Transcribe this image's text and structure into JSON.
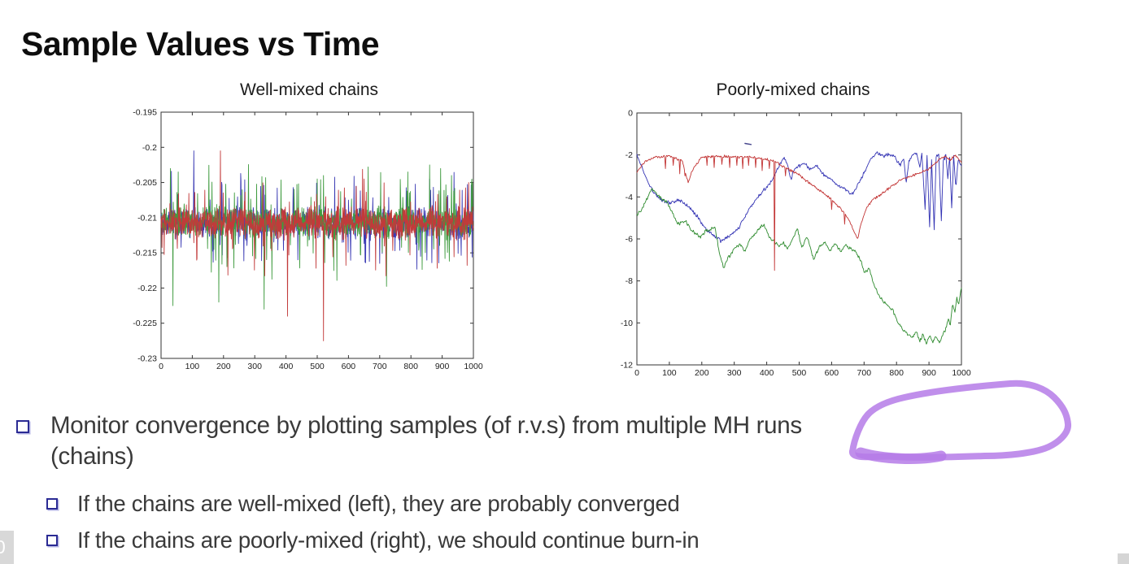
{
  "slide": {
    "title": "Sample Values vs Time",
    "page_badge": "0"
  },
  "bullets": {
    "b1_line1": "Monitor convergence by plotting samples (of r.v.s) from multiple MH runs",
    "b1_line2": "(chains)",
    "s1": "If the chains are well-mixed (left), they are probably converged",
    "s2": "If the chains are poorly-mixed (right), we should continue burn-in"
  },
  "annotation": {
    "label": "hand-drawn loop circling the words 'multiple MH runs'",
    "color": "#b57be8"
  },
  "chart_data": [
    {
      "type": "line",
      "title": "Well-mixed chains",
      "xlabel": "",
      "ylabel": "",
      "xlim": [
        0,
        1000
      ],
      "ylim": [
        -0.23,
        -0.195
      ],
      "grid": false,
      "legend": "none",
      "xticks": [
        0,
        100,
        200,
        300,
        400,
        500,
        600,
        700,
        800,
        900,
        1000
      ],
      "xtick_labels": [
        "0",
        "100",
        "200",
        "300",
        "400",
        "500",
        "600",
        "700",
        "800",
        "900",
        "1000"
      ],
      "yticks": [
        -0.195,
        -0.2,
        -0.205,
        -0.21,
        -0.215,
        -0.22,
        -0.225,
        -0.23
      ],
      "ytick_labels": [
        "-0.195",
        "-0.2",
        "-0.205",
        "-0.21",
        "-0.215",
        "-0.22",
        "-0.225",
        "-0.23"
      ],
      "description": "Three MH chains oscillating tightly around mean -0.2105 with dense noise band -0.208..-0.213 and occasional spikes to -0.2 and -0.2275",
      "series": [
        {
          "name": "chain 1 (blue)",
          "color": "#3b3bb4",
          "gen": "noise",
          "mean": -0.2108,
          "amp": 0.0025,
          "spike_prob": 0.12,
          "spike_amp": 0.006,
          "seed": 11,
          "spikes": [
            [
              105,
              -0.2005
            ],
            [
              330,
              -0.2165
            ],
            [
              600,
              -0.2075
            ],
            [
              700,
              -0.2165
            ],
            [
              860,
              -0.2045
            ]
          ]
        },
        {
          "name": "chain 2 (green)",
          "color": "#3f9b3f",
          "gen": "noise",
          "mean": -0.2106,
          "amp": 0.0025,
          "spike_prob": 0.13,
          "spike_amp": 0.007,
          "seed": 22,
          "spikes": [
            [
              30,
              -0.203
            ],
            [
              38,
              -0.2225
            ],
            [
              55,
              -0.2035
            ],
            [
              185,
              -0.222
            ],
            [
              330,
              -0.223
            ],
            [
              520,
              -0.204
            ],
            [
              790,
              -0.2035
            ],
            [
              860,
              -0.2025
            ],
            [
              895,
              -0.203
            ],
            [
              930,
              -0.204
            ]
          ]
        },
        {
          "name": "chain 3 (red)",
          "color": "#c23a3a",
          "gen": "noise",
          "mean": -0.2108,
          "amp": 0.0025,
          "spike_prob": 0.12,
          "spike_amp": 0.006,
          "seed": 33,
          "spikes": [
            [
              190,
              -0.2005
            ],
            [
              405,
              -0.224
            ],
            [
              520,
              -0.2275
            ],
            [
              650,
              -0.2045
            ],
            [
              985,
              -0.205
            ]
          ]
        }
      ]
    },
    {
      "type": "line",
      "title": "Poorly-mixed chains",
      "xlabel": "",
      "ylabel": "",
      "xlim": [
        0,
        1000
      ],
      "ylim": [
        -12,
        0
      ],
      "grid": false,
      "legend": "none",
      "xticks": [
        0,
        100,
        200,
        300,
        400,
        500,
        600,
        700,
        800,
        900,
        1000
      ],
      "xtick_labels": [
        "0",
        "100",
        "200",
        "300",
        "400",
        "500",
        "600",
        "700",
        "800",
        "900",
        "1000"
      ],
      "yticks": [
        0,
        -2,
        -4,
        -6,
        -8,
        -10,
        -12
      ],
      "ytick_labels": [
        "0",
        "-2",
        "-4",
        "-6",
        "-8",
        "-10",
        "-12"
      ],
      "description": "Three MH chains wandering far apart: red near -2 then dipping to -6, blue between -2 and -6 with wild end oscillations, green drifting down to -11 before recovering to -8.3",
      "series": [
        {
          "name": "blue chain",
          "color": "#3434b4",
          "gen": "way",
          "noise": 0.1,
          "seed": 8,
          "way": [
            [
              0,
              -2.0
            ],
            [
              18,
              -2.7
            ],
            [
              40,
              -3.5
            ],
            [
              70,
              -4.1
            ],
            [
              100,
              -4.3
            ],
            [
              130,
              -4.15
            ],
            [
              160,
              -4.45
            ],
            [
              185,
              -4.9
            ],
            [
              210,
              -5.5
            ],
            [
              235,
              -5.8
            ],
            [
              258,
              -6.1
            ],
            [
              285,
              -5.9
            ],
            [
              310,
              -5.55
            ],
            [
              335,
              -4.9
            ],
            [
              355,
              -4.35
            ],
            [
              375,
              -3.95
            ],
            [
              395,
              -3.6
            ],
            [
              415,
              -3.25
            ],
            [
              432,
              -2.7
            ],
            [
              447,
              -2.25
            ],
            [
              455,
              -2.1
            ],
            [
              465,
              -2.5
            ],
            [
              475,
              -3.2
            ],
            [
              483,
              -2.7
            ],
            [
              495,
              -2.55
            ],
            [
              515,
              -2.4
            ],
            [
              535,
              -2.7
            ],
            [
              555,
              -2.5
            ],
            [
              575,
              -2.95
            ],
            [
              600,
              -3.2
            ],
            [
              622,
              -3.5
            ],
            [
              645,
              -3.65
            ],
            [
              662,
              -3.9
            ],
            [
              678,
              -3.5
            ],
            [
              700,
              -2.85
            ],
            [
              720,
              -2.2
            ],
            [
              740,
              -1.9
            ],
            [
              760,
              -2.05
            ],
            [
              778,
              -1.95
            ],
            [
              795,
              -2.1
            ],
            [
              810,
              -2.5
            ],
            [
              822,
              -2.2
            ],
            [
              830,
              -3.3
            ],
            [
              838,
              -2.3
            ],
            [
              850,
              -2.0
            ],
            [
              862,
              -1.9
            ],
            [
              872,
              -2.6
            ],
            [
              878,
              -1.95
            ],
            [
              888,
              -4.5
            ],
            [
              894,
              -2.1
            ],
            [
              902,
              -5.5
            ],
            [
              908,
              -2.2
            ],
            [
              916,
              -5.6
            ],
            [
              922,
              -2.1
            ],
            [
              930,
              -1.95
            ],
            [
              938,
              -5.2
            ],
            [
              944,
              -2.3
            ],
            [
              952,
              -2.0
            ],
            [
              958,
              -3.1
            ],
            [
              964,
              -2.1
            ],
            [
              970,
              -4.6
            ],
            [
              976,
              -2.05
            ],
            [
              983,
              -3.6
            ],
            [
              990,
              -2.2
            ],
            [
              1000,
              -2.55
            ]
          ]
        },
        {
          "name": "green chain",
          "color": "#2e8b2e",
          "gen": "way",
          "noise": 0.1,
          "seed": 9,
          "way": [
            [
              0,
              -4.9
            ],
            [
              20,
              -4.45
            ],
            [
              45,
              -3.6
            ],
            [
              70,
              -4.0
            ],
            [
              95,
              -4.3
            ],
            [
              125,
              -5.3
            ],
            [
              150,
              -5.15
            ],
            [
              170,
              -5.6
            ],
            [
              195,
              -5.9
            ],
            [
              215,
              -5.6
            ],
            [
              240,
              -5.45
            ],
            [
              255,
              -6.7
            ],
            [
              268,
              -7.4
            ],
            [
              282,
              -6.9
            ],
            [
              300,
              -6.45
            ],
            [
              318,
              -6.25
            ],
            [
              332,
              -6.6
            ],
            [
              348,
              -6.0
            ],
            [
              362,
              -5.85
            ],
            [
              378,
              -5.45
            ],
            [
              392,
              -5.3
            ],
            [
              408,
              -5.9
            ],
            [
              422,
              -6.1
            ],
            [
              438,
              -6.35
            ],
            [
              452,
              -6.2
            ],
            [
              466,
              -6.45
            ],
            [
              480,
              -6.0
            ],
            [
              494,
              -5.5
            ],
            [
              508,
              -6.4
            ],
            [
              524,
              -5.9
            ],
            [
              545,
              -7.0
            ],
            [
              562,
              -6.35
            ],
            [
              578,
              -6.2
            ],
            [
              596,
              -6.55
            ],
            [
              612,
              -6.2
            ],
            [
              628,
              -6.65
            ],
            [
              642,
              -6.3
            ],
            [
              658,
              -6.45
            ],
            [
              672,
              -6.55
            ],
            [
              690,
              -7.05
            ],
            [
              702,
              -7.6
            ],
            [
              716,
              -7.4
            ],
            [
              730,
              -8.2
            ],
            [
              745,
              -8.7
            ],
            [
              760,
              -9.0
            ],
            [
              775,
              -9.2
            ],
            [
              790,
              -9.45
            ],
            [
              805,
              -10.0
            ],
            [
              820,
              -10.3
            ],
            [
              835,
              -10.55
            ],
            [
              848,
              -10.7
            ],
            [
              860,
              -10.4
            ],
            [
              872,
              -10.85
            ],
            [
              882,
              -10.55
            ],
            [
              892,
              -11.0
            ],
            [
              902,
              -10.6
            ],
            [
              912,
              -10.9
            ],
            [
              922,
              -10.65
            ],
            [
              932,
              -10.95
            ],
            [
              942,
              -10.6
            ],
            [
              952,
              -10.3
            ],
            [
              960,
              -9.8
            ],
            [
              966,
              -10.1
            ],
            [
              972,
              -9.15
            ],
            [
              980,
              -9.45
            ],
            [
              986,
              -8.85
            ],
            [
              992,
              -9.1
            ],
            [
              1000,
              -8.3
            ]
          ]
        },
        {
          "name": "red chain",
          "color": "#c23434",
          "gen": "way",
          "noise": 0.07,
          "seed": 7,
          "way": [
            [
              0,
              -2.8
            ],
            [
              25,
              -2.3
            ],
            [
              60,
              -2.1
            ],
            [
              100,
              -2.05
            ],
            [
              140,
              -2.3
            ],
            [
              158,
              -3.3
            ],
            [
              172,
              -2.7
            ],
            [
              200,
              -2.1
            ],
            [
              250,
              -2.05
            ],
            [
              300,
              -2.1
            ],
            [
              350,
              -2.1
            ],
            [
              395,
              -2.2
            ],
            [
              424,
              -2.3
            ],
            [
              445,
              -2.5
            ],
            [
              470,
              -2.7
            ],
            [
              495,
              -2.9
            ],
            [
              520,
              -3.2
            ],
            [
              555,
              -3.6
            ],
            [
              590,
              -4.0
            ],
            [
              625,
              -4.5
            ],
            [
              650,
              -5.0
            ],
            [
              665,
              -5.5
            ],
            [
              680,
              -6.0
            ],
            [
              692,
              -5.2
            ],
            [
              705,
              -4.6
            ],
            [
              725,
              -4.15
            ],
            [
              750,
              -3.9
            ],
            [
              780,
              -3.55
            ],
            [
              815,
              -3.15
            ],
            [
              845,
              -3.0
            ],
            [
              875,
              -2.85
            ],
            [
              905,
              -2.6
            ],
            [
              930,
              -2.25
            ],
            [
              950,
              -2.05
            ],
            [
              965,
              -2.25
            ],
            [
              980,
              -2.0
            ],
            [
              1000,
              -2.35
            ]
          ],
          "dips": [
            [
              88,
              -2.65
            ],
            [
              112,
              -2.5
            ],
            [
              132,
              -2.9
            ],
            [
              148,
              -3.0
            ],
            [
              215,
              -2.5
            ],
            [
              238,
              -2.6
            ],
            [
              262,
              -2.45
            ],
            [
              285,
              -2.6
            ],
            [
              308,
              -2.5
            ],
            [
              326,
              -2.65
            ],
            [
              344,
              -2.5
            ],
            [
              365,
              -2.6
            ],
            [
              385,
              -2.75
            ],
            [
              408,
              -2.65
            ],
            [
              424,
              -7.5
            ],
            [
              458,
              -3.0
            ],
            [
              600,
              -4.6
            ],
            [
              640,
              -5.3
            ]
          ]
        }
      ],
      "extra_marks": [
        {
          "type": "dash",
          "name": "stray blue dash",
          "color": "#45458c",
          "points": [
            [
              333,
              -1.45
            ],
            [
              352,
              -1.5
            ]
          ]
        }
      ]
    }
  ]
}
